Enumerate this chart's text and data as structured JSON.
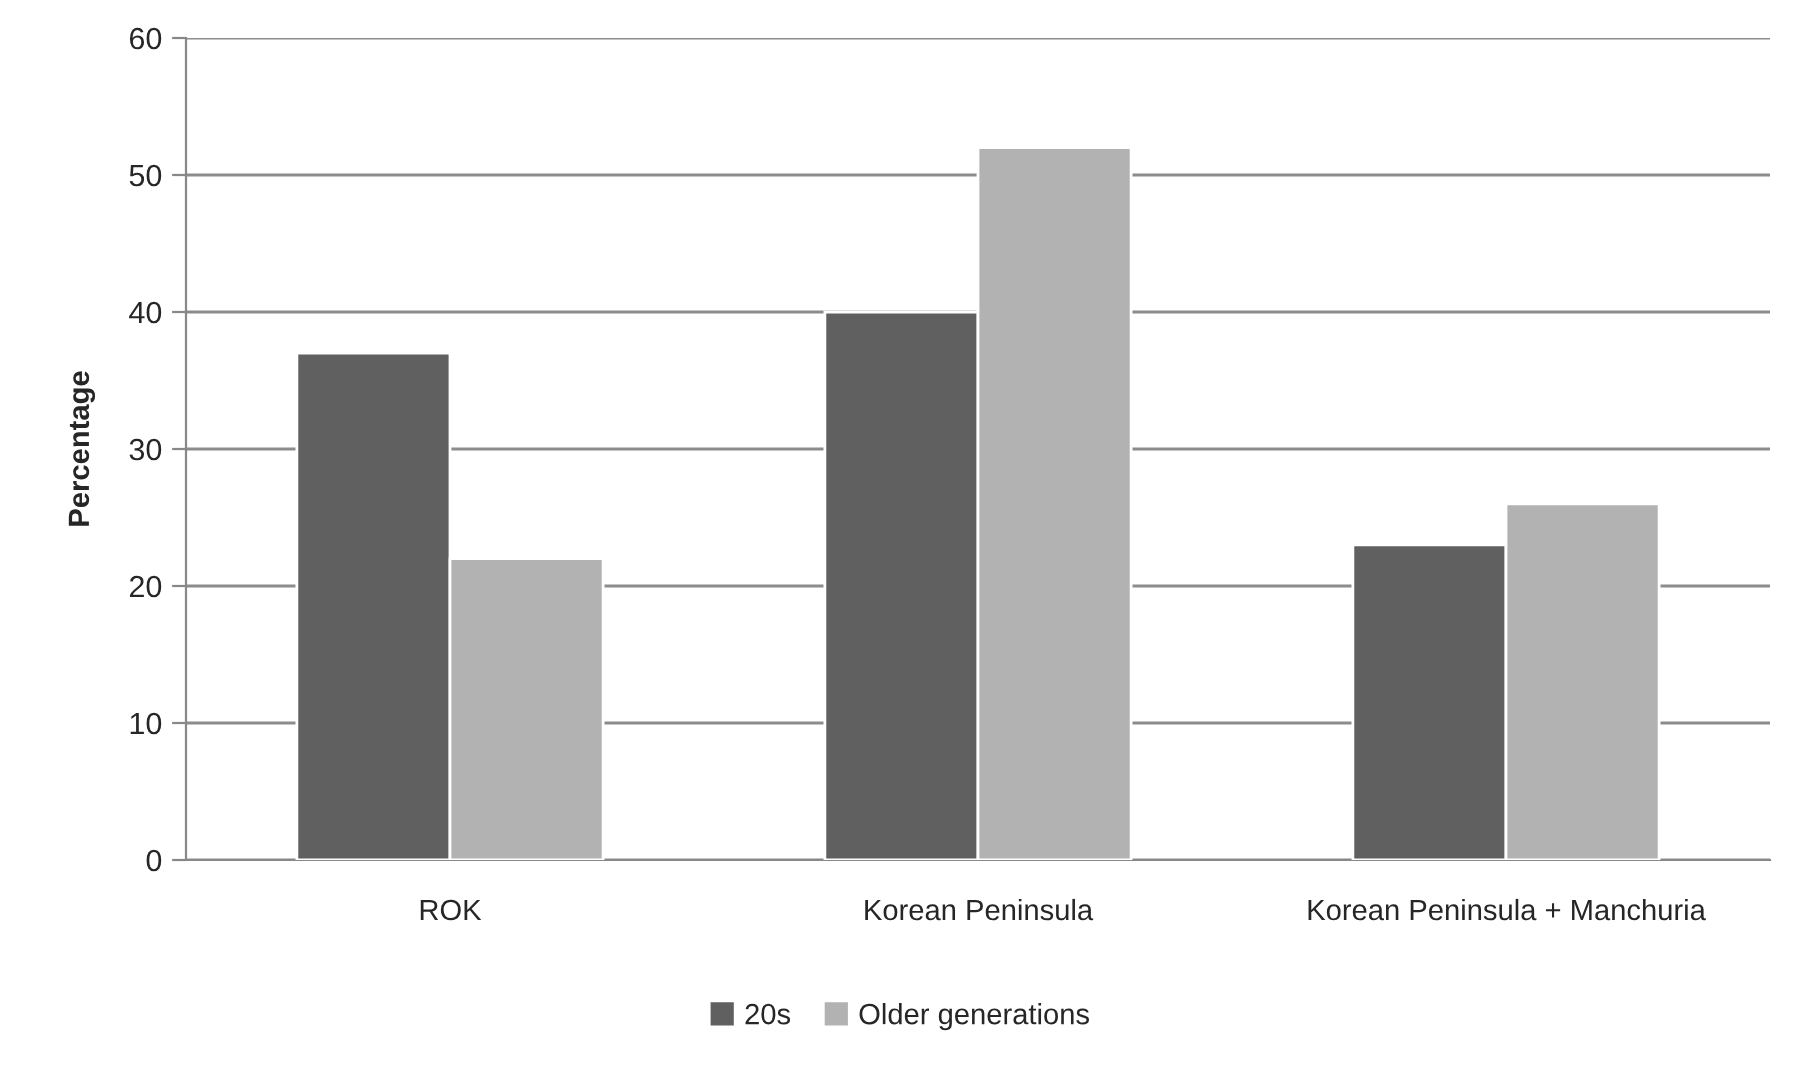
{
  "chart_data": {
    "type": "bar",
    "ylabel": "Percentage",
    "categories": [
      "ROK",
      "Korean Peninsula",
      "Korean Peninsula + Manchuria"
    ],
    "series": [
      {
        "name": "20s",
        "color": "#606060",
        "values": [
          37,
          40,
          23
        ]
      },
      {
        "name": "Older generations",
        "color": "#b2b2b2",
        "values": [
          22,
          52,
          26
        ]
      }
    ],
    "ylim": [
      0,
      60
    ],
    "yticks": [
      0,
      10,
      20,
      30,
      40,
      50,
      60
    ],
    "grid": "y",
    "legend": "bottom"
  }
}
